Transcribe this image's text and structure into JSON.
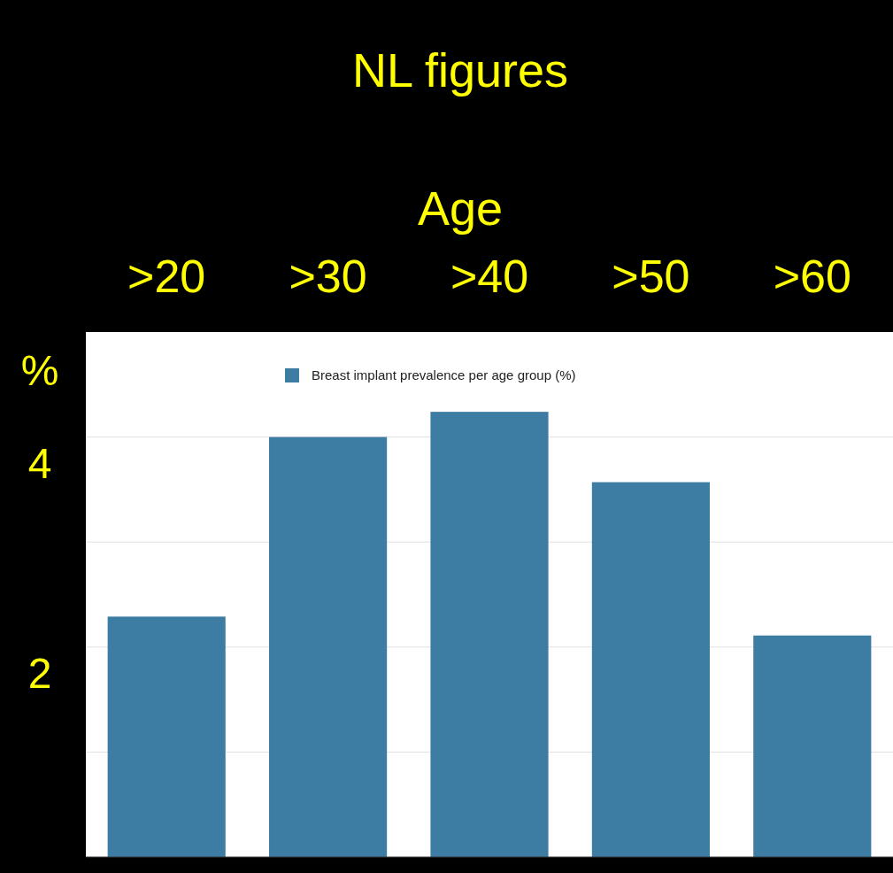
{
  "chart_data": {
    "type": "bar",
    "title": "NL figures",
    "xlabel": "Age",
    "ylabel": "%",
    "categories": [
      ">20",
      ">30",
      ">40",
      ">50",
      ">60"
    ],
    "series": [
      {
        "name": "Breast implant prevalence per age group (%)",
        "color": "#3d7ca3",
        "values": [
          2.29,
          4.0,
          4.24,
          3.57,
          2.11
        ]
      }
    ],
    "ylim": [
      0,
      5
    ],
    "yticks": [
      {
        "value": 1,
        "label": null
      },
      2,
      {
        "value": 3,
        "label": null
      },
      4
    ],
    "grid": "y",
    "legend": "top"
  }
}
